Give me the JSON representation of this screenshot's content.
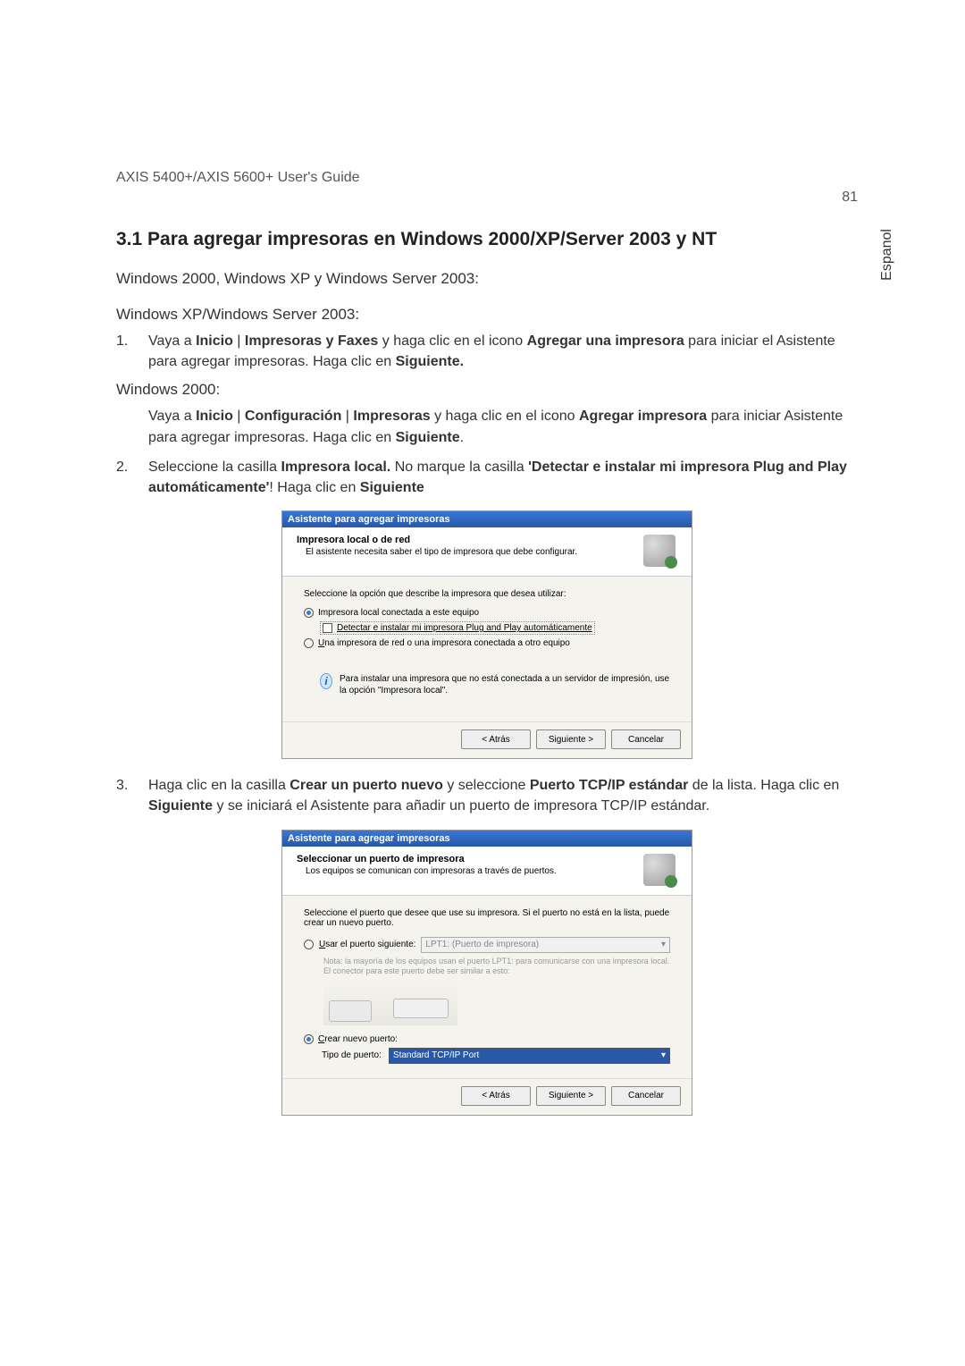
{
  "document": {
    "header_title": "AXIS 5400+/AXIS 5600+ User's Guide",
    "page_number": "81",
    "side_label": "Espanol",
    "section_heading": "3.1  Para agregar impresoras en Windows 2000/XP/Server 2003 y NT",
    "sub_heading_1": "Windows 2000, Windows XP y Windows Server 2003:",
    "sub_heading_2": "Windows XP/Windows Server 2003:",
    "step_1_pre": "Vaya a ",
    "step_1_b1": "Inicio",
    "step_1_sep1": " | ",
    "step_1_b2": "Impresoras y Faxes",
    "step_1_mid1": " y haga clic en el icono ",
    "step_1_b3": "Agregar una impresora",
    "step_1_mid2": " para iniciar el Asistente para agregar impresoras. Haga clic en ",
    "step_1_b4": "Siguiente.",
    "win2000_label": "Windows 2000:",
    "win2000_pre": "Vaya a ",
    "win2000_b1": "Inicio",
    "win2000_sep1": " | ",
    "win2000_b2": "Configuración",
    "win2000_sep2": " | ",
    "win2000_b3": "Impresoras",
    "win2000_mid1": " y haga clic en el icono ",
    "win2000_b4": "Agregar impresora",
    "win2000_mid2": " para iniciar Asistente para agregar impresoras. Haga clic en ",
    "win2000_b5": "Siguiente",
    "win2000_end": ".",
    "step_2_pre": "Seleccione la casilla ",
    "step_2_b1": "Impresora local.",
    "step_2_mid1": " No marque la casilla ",
    "step_2_b2": "'Detectar e instalar mi impresora Plug and Play automáticamente'",
    "step_2_mid2": "! Haga clic en ",
    "step_2_b3": "Siguiente",
    "step_3_pre": "Haga clic en la casilla ",
    "step_3_b1": "Crear un puerto nuevo",
    "step_3_mid1": " y seleccione ",
    "step_3_b2": "Puerto TCP/IP estándar",
    "step_3_mid2": " de la lista. Haga clic en ",
    "step_3_b3": "Siguiente",
    "step_3_end": " y se iniciará el Asistente para añadir un puerto de impresora TCP/IP estándar."
  },
  "dialog1": {
    "titlebar": "Asistente para agregar impresoras",
    "header_title": "Impresora local o de red",
    "header_sub": "El asistente necesita saber el tipo de impresora que debe configurar.",
    "body_intro": "Seleccione la opción que describe la impresora que desea utilizar:",
    "radio1_label": "Impresora local conectada a este equipo",
    "checkbox_label": "Detectar e instalar mi impresora Plug and Play automáticamente",
    "radio2_label": "Una impresora de red o una impresora conectada a otro equipo",
    "info_text": "Para instalar una impresora que no está conectada a un servidor de impresión, use la opción \"Impresora local\".",
    "btn_back": "< Atrás",
    "btn_next": "Siguiente >",
    "btn_cancel": "Cancelar"
  },
  "dialog2": {
    "titlebar": "Asistente para agregar impresoras",
    "header_title": "Seleccionar un puerto de impresora",
    "header_sub": "Los equipos se comunican con impresoras a través de puertos.",
    "body_intro": "Seleccione el puerto que desee que use su impresora. Si el puerto no está en la lista, puede crear un nuevo puerto.",
    "radio1_label": "Usar el puerto siguiente:",
    "port_value": "LPT1: (Puerto de impresora)",
    "note": "Nota: la mayoría de los equipos usan el puerto LPT1: para comunicarse con una impresora local. El conector para este puerto debe ser similar a esto:",
    "radio2_label": "Crear nuevo puerto:",
    "type_label": "Tipo de puerto:",
    "type_value": "Standard TCP/IP Port",
    "btn_back": "< Atrás",
    "btn_next": "Siguiente >",
    "btn_cancel": "Cancelar"
  }
}
